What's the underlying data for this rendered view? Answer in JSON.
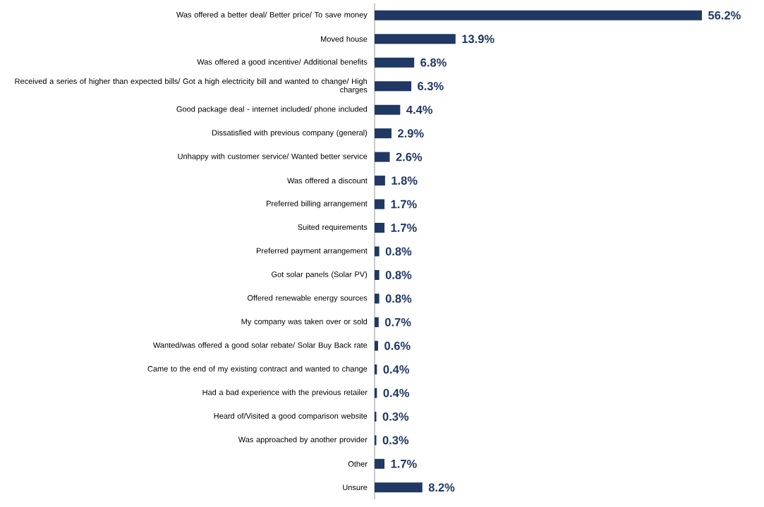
{
  "chart_data": {
    "type": "bar",
    "orientation": "horizontal",
    "color": "#1f3864",
    "categories": [
      "Was offered a better deal/ Better price/ To save money",
      "Moved house",
      "Was offered a good incentive/ Additional benefits",
      "Received a series of higher than expected bills/ Got a high electricity bill and wanted to change/ High charges",
      "Good package deal - internet included/ phone included",
      "Dissatisfied with previous company (general)",
      "Unhappy with customer service/ Wanted better service",
      "Was offered a discount",
      "Preferred billing arrangement",
      "Suited requirements",
      "Preferred payment arrangement",
      "Got solar panels (Solar PV)",
      "Offered renewable energy sources",
      "My company was taken over or sold",
      "Wanted/was offered a good solar rebate/ Solar Buy Back rate",
      "Came to the end of my existing contract and wanted to change",
      "Had a bad experience with the previous retailer",
      "Heard of/Visited a good comparison website",
      "Was approached by another provider",
      "Other",
      "Unsure"
    ],
    "values": [
      56.2,
      13.9,
      6.8,
      6.3,
      4.4,
      2.9,
      2.6,
      1.8,
      1.7,
      1.7,
      0.8,
      0.8,
      0.8,
      0.7,
      0.6,
      0.4,
      0.4,
      0.3,
      0.3,
      1.7,
      8.2
    ],
    "value_labels": [
      "56.2%",
      "13.9%",
      "6.8%",
      "6.3%",
      "4.4%",
      "2.9%",
      "2.6%",
      "1.8%",
      "1.7%",
      "1.7%",
      "0.8%",
      "0.8%",
      "0.8%",
      "0.7%",
      "0.6%",
      "0.4%",
      "0.4%",
      "0.3%",
      "0.3%",
      "1.7%",
      "8.2%"
    ]
  }
}
